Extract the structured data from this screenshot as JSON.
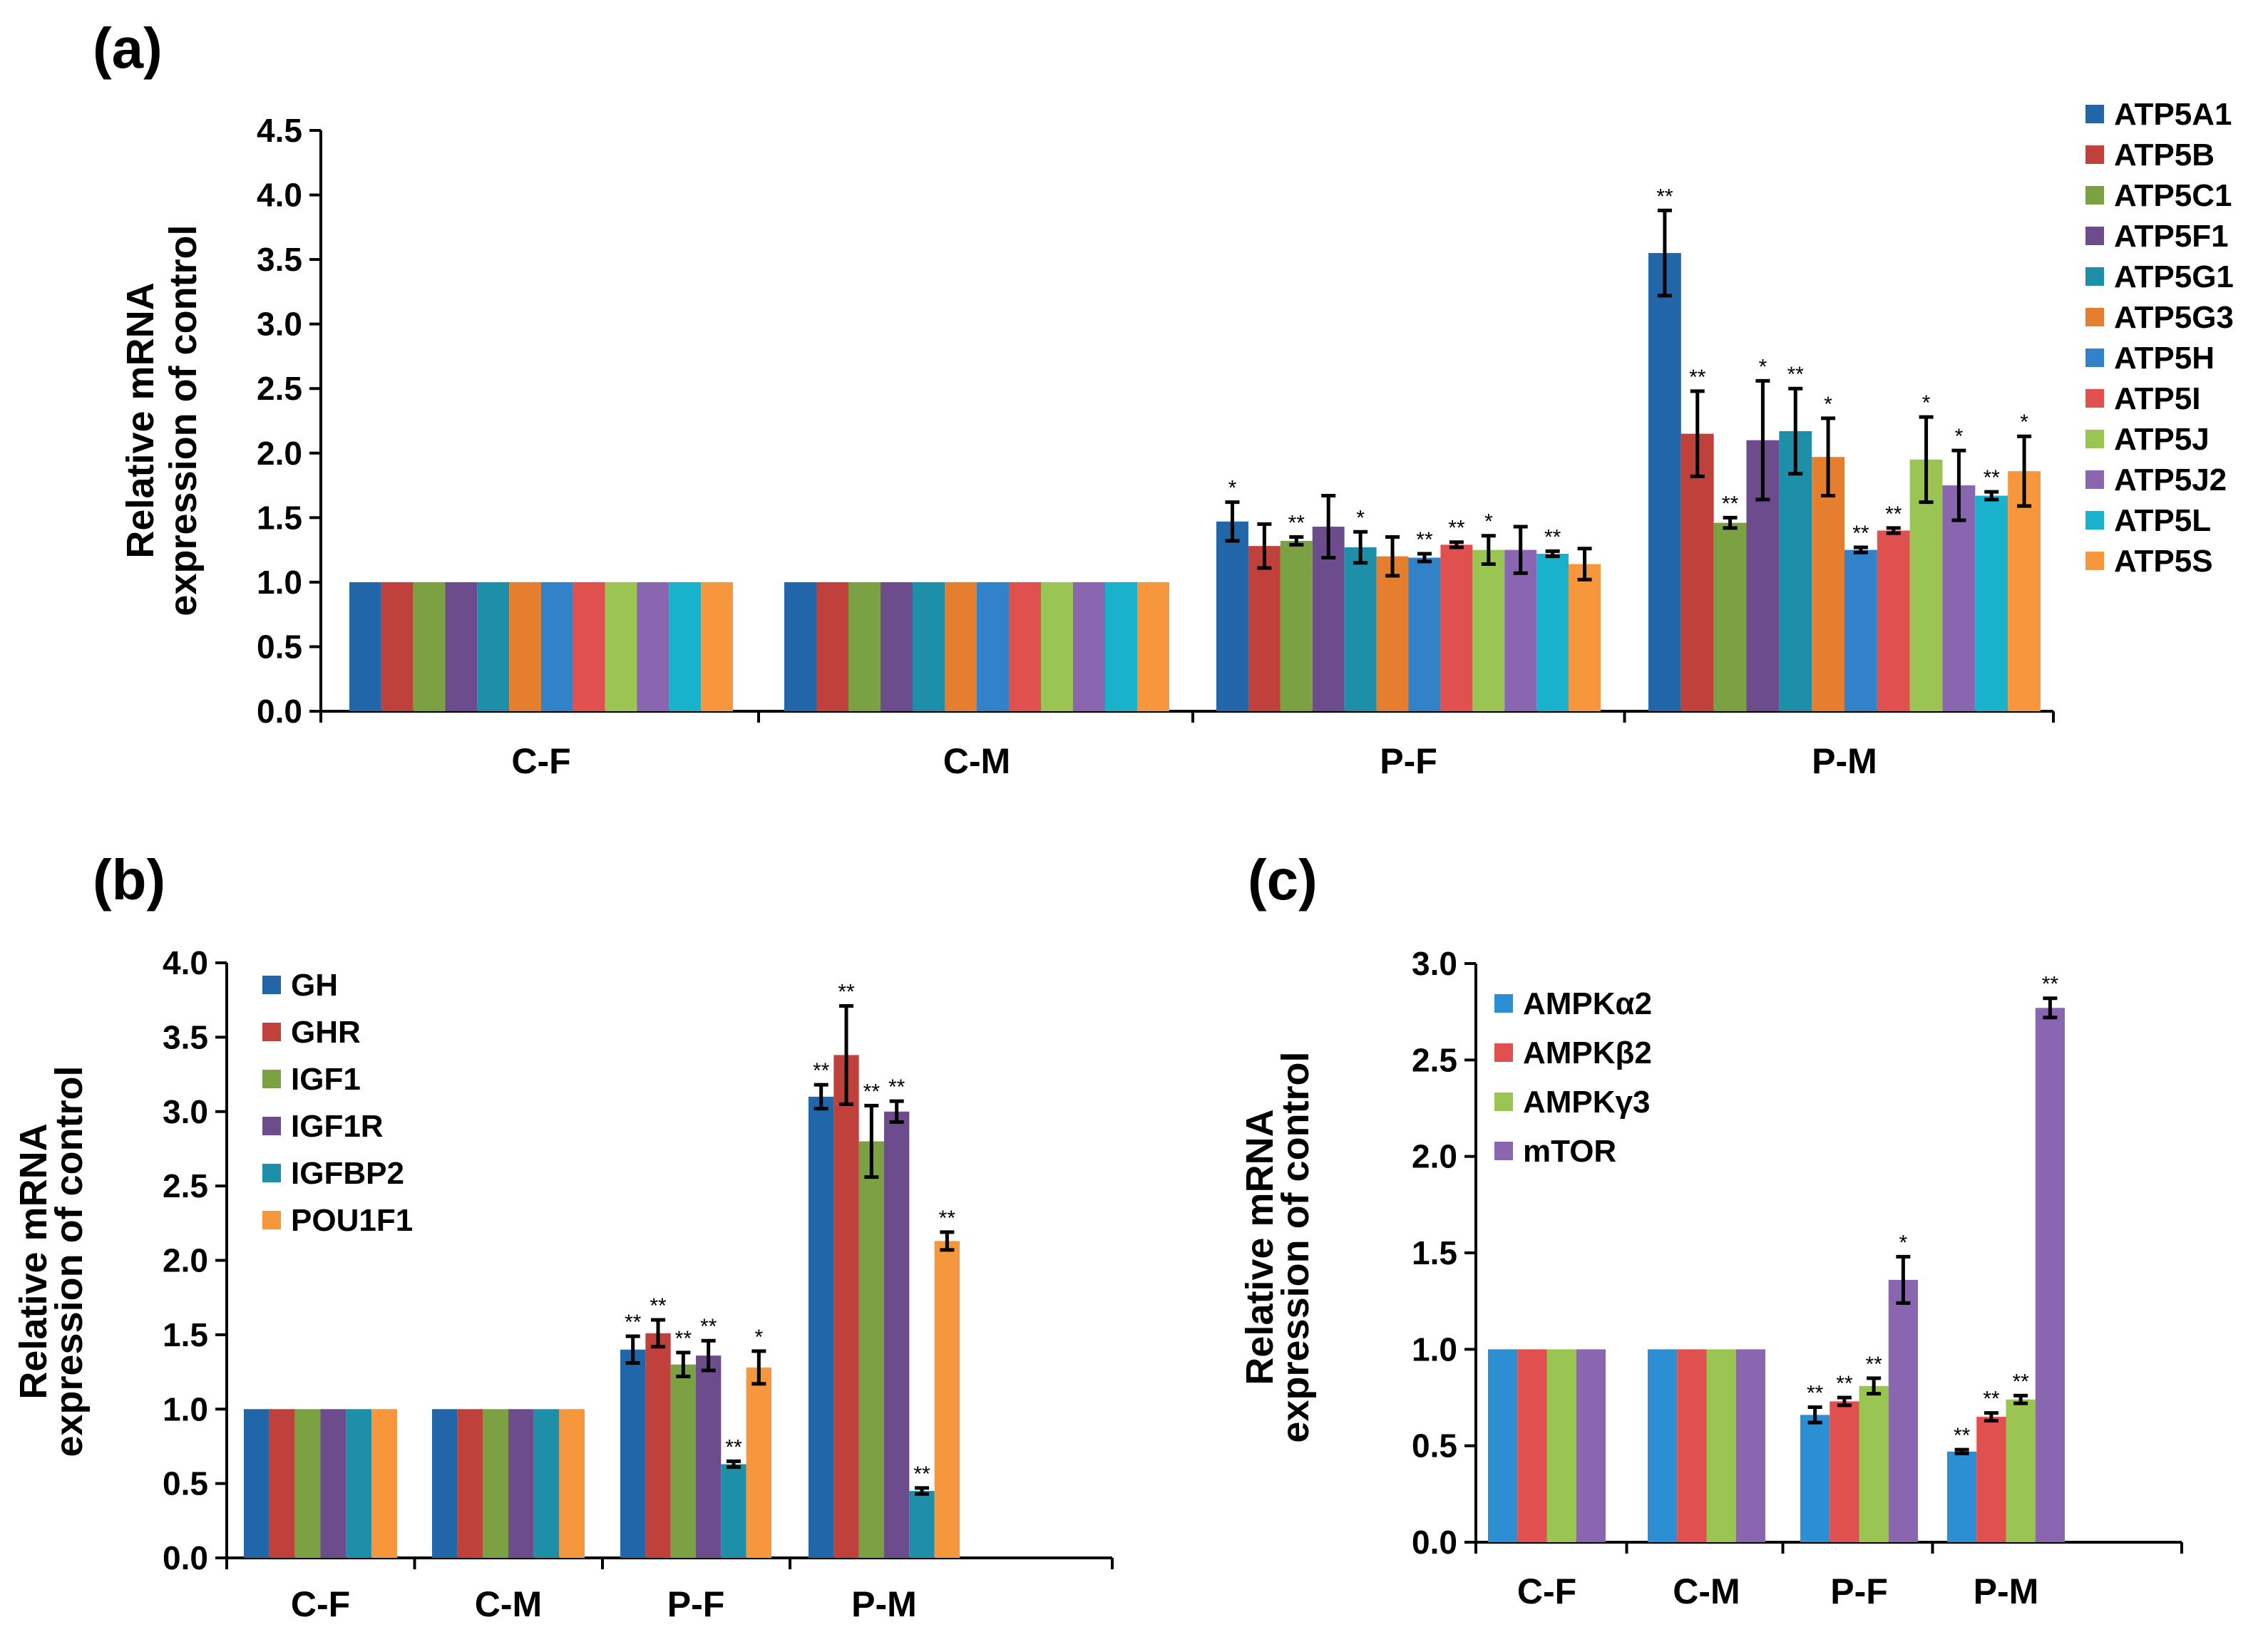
{
  "chart_data": [
    {
      "type": "bar",
      "panel_label": "(a)",
      "categories": [
        "C-F",
        "C-M",
        "P-F",
        "P-M"
      ],
      "ylabel": [
        "Relative mRNA",
        "expression of control"
      ],
      "ylim": [
        0,
        4.5
      ],
      "yticks": [
        "0.0",
        "0.5",
        "1.0",
        "1.5",
        "2.0",
        "2.5",
        "3.0",
        "3.5",
        "4.0",
        "4.5"
      ],
      "legend_position": "right",
      "series": [
        {
          "name": "ATP5A1",
          "color": "#2166a8",
          "values": [
            1,
            1,
            1.47,
            3.55
          ],
          "errors": [
            0,
            0,
            0.15,
            0.33
          ],
          "sig": [
            "",
            "",
            "*",
            "**"
          ]
        },
        {
          "name": "ATP5B",
          "color": "#c0403c",
          "values": [
            1,
            1,
            1.28,
            2.15
          ],
          "errors": [
            0,
            0,
            0.17,
            0.33
          ],
          "sig": [
            "",
            "",
            "",
            "**"
          ]
        },
        {
          "name": "ATP5C1",
          "color": "#7ba142",
          "values": [
            1,
            1,
            1.32,
            1.46
          ],
          "errors": [
            0,
            0,
            0.03,
            0.04
          ],
          "sig": [
            "",
            "",
            "**",
            "**"
          ]
        },
        {
          "name": "ATP5F1",
          "color": "#6d4c8e",
          "values": [
            1,
            1,
            1.43,
            2.1
          ],
          "errors": [
            0,
            0,
            0.24,
            0.46
          ],
          "sig": [
            "",
            "",
            "",
            "*"
          ]
        },
        {
          "name": "ATP5G1",
          "color": "#1d8fa8",
          "values": [
            1,
            1,
            1.27,
            2.17
          ],
          "errors": [
            0,
            0,
            0.12,
            0.33
          ],
          "sig": [
            "",
            "",
            "*",
            "**"
          ]
        },
        {
          "name": "ATP5G3",
          "color": "#e57e2e",
          "values": [
            1,
            1,
            1.2,
            1.97
          ],
          "errors": [
            0,
            0,
            0.15,
            0.3
          ],
          "sig": [
            "",
            "",
            "",
            "*"
          ]
        },
        {
          "name": "ATP5H",
          "color": "#3182c8",
          "values": [
            1,
            1,
            1.19,
            1.25
          ],
          "errors": [
            0,
            0,
            0.03,
            0.02
          ],
          "sig": [
            "",
            "",
            "**",
            "**"
          ]
        },
        {
          "name": "ATP5I",
          "color": "#e0504f",
          "values": [
            1,
            1,
            1.29,
            1.4
          ],
          "errors": [
            0,
            0,
            0.02,
            0.02
          ],
          "sig": [
            "",
            "",
            "**",
            "**"
          ]
        },
        {
          "name": "ATP5J",
          "color": "#9bc552",
          "values": [
            1,
            1,
            1.25,
            1.95
          ],
          "errors": [
            0,
            0,
            0.11,
            0.33
          ],
          "sig": [
            "",
            "",
            "*",
            "*"
          ]
        },
        {
          "name": "ATP5J2",
          "color": "#8a66b0",
          "values": [
            1,
            1,
            1.25,
            1.75
          ],
          "errors": [
            0,
            0,
            0.18,
            0.27
          ],
          "sig": [
            "",
            "",
            "",
            "*"
          ]
        },
        {
          "name": "ATP5L",
          "color": "#18b2cc",
          "values": [
            1,
            1,
            1.22,
            1.67
          ],
          "errors": [
            0,
            0,
            0.02,
            0.03
          ],
          "sig": [
            "",
            "",
            "**",
            "**"
          ]
        },
        {
          "name": "ATP5S",
          "color": "#f7973d",
          "values": [
            1,
            1,
            1.14,
            1.86
          ],
          "errors": [
            0,
            0,
            0.12,
            0.27
          ],
          "sig": [
            "",
            "",
            "",
            "*"
          ]
        }
      ]
    },
    {
      "type": "bar",
      "panel_label": "(b)",
      "categories": [
        "C-F",
        "C-M",
        "P-F",
        "P-M"
      ],
      "ylabel": [
        "Relative mRNA",
        "expression of control"
      ],
      "ylim": [
        0,
        4.0
      ],
      "yticks": [
        "0.0",
        "0.5",
        "1.0",
        "1.5",
        "2.0",
        "2.5",
        "3.0",
        "3.5",
        "4.0"
      ],
      "legend_position": "top-left",
      "series": [
        {
          "name": "GH",
          "color": "#2166a8",
          "values": [
            1,
            1,
            1.4,
            3.1
          ],
          "errors": [
            0,
            0,
            0.09,
            0.08
          ],
          "sig": [
            "",
            "",
            "**",
            "**"
          ]
        },
        {
          "name": "GHR",
          "color": "#c0403c",
          "values": [
            1,
            1,
            1.51,
            3.38
          ],
          "errors": [
            0,
            0,
            0.09,
            0.33
          ],
          "sig": [
            "",
            "",
            "**",
            "**"
          ]
        },
        {
          "name": "IGF1",
          "color": "#7ba142",
          "values": [
            1,
            1,
            1.3,
            2.8
          ],
          "errors": [
            0,
            0,
            0.08,
            0.24
          ],
          "sig": [
            "",
            "",
            "**",
            "**"
          ]
        },
        {
          "name": "IGF1R",
          "color": "#6d4c8e",
          "values": [
            1,
            1,
            1.36,
            3.0
          ],
          "errors": [
            0,
            0,
            0.1,
            0.07
          ],
          "sig": [
            "",
            "",
            "**",
            "**"
          ]
        },
        {
          "name": "IGFBP2",
          "color": "#1d8fa8",
          "values": [
            1,
            1,
            0.63,
            0.45
          ],
          "errors": [
            0,
            0,
            0.02,
            0.02
          ],
          "sig": [
            "",
            "",
            "**",
            "**"
          ]
        },
        {
          "name": "POU1F1",
          "color": "#f7973d",
          "values": [
            1,
            1,
            1.28,
            2.13
          ],
          "errors": [
            0,
            0,
            0.11,
            0.06
          ],
          "sig": [
            "",
            "",
            "*",
            "**"
          ]
        }
      ]
    },
    {
      "type": "bar",
      "panel_label": "(c)",
      "categories": [
        "C-F",
        "C-M",
        "P-F",
        "P-M"
      ],
      "ylabel": [
        "Relative mRNA",
        "expression of control"
      ],
      "ylim": [
        0,
        3.0
      ],
      "yticks": [
        "0.0",
        "0.5",
        "1.0",
        "1.5",
        "2.0",
        "2.5",
        "3.0"
      ],
      "legend_position": "top-left",
      "series": [
        {
          "name": "AMPKα2",
          "color": "#2c8fd4",
          "values": [
            1,
            1,
            0.66,
            0.47
          ],
          "errors": [
            0,
            0,
            0.04,
            0.01
          ],
          "sig": [
            "",
            "",
            "**",
            "**"
          ]
        },
        {
          "name": "AMPKβ2",
          "color": "#e0504f",
          "values": [
            1,
            1,
            0.73,
            0.65
          ],
          "errors": [
            0,
            0,
            0.02,
            0.02
          ],
          "sig": [
            "",
            "",
            "**",
            "**"
          ]
        },
        {
          "name": "AMPKγ3",
          "color": "#9bc552",
          "values": [
            1,
            1,
            0.81,
            0.74
          ],
          "errors": [
            0,
            0,
            0.04,
            0.02
          ],
          "sig": [
            "",
            "",
            "**",
            "**"
          ]
        },
        {
          "name": "mTOR",
          "color": "#8a66b0",
          "values": [
            1,
            1,
            1.36,
            2.77
          ],
          "errors": [
            0,
            0,
            0.12,
            0.05
          ],
          "sig": [
            "",
            "",
            "*",
            "**"
          ]
        }
      ]
    }
  ]
}
